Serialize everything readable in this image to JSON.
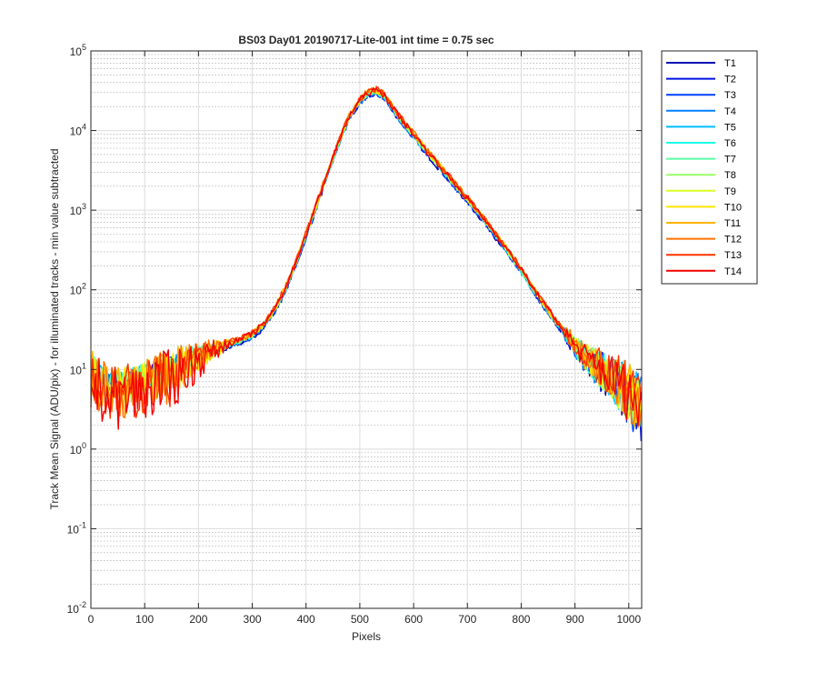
{
  "chart_data": {
    "type": "line",
    "title": "BS03 Day01 20190717-Lite-001 int time = 0.75 sec",
    "xlabel": "Pixels",
    "ylabel": "Track Mean Signal (ADU/pix) - for illuminated tracks - min value subtracted",
    "xlim": [
      0,
      1024
    ],
    "ylim": [
      0.01,
      100000
    ],
    "yscale": "log",
    "grid": true,
    "minor_grid": true,
    "legend_position": "outside-top-right",
    "x_ticks": [
      "0",
      "100",
      "200",
      "300",
      "400",
      "500",
      "600",
      "700",
      "800",
      "900",
      "1000"
    ],
    "y_ticks": [
      {
        "base": "10",
        "exp": "-2"
      },
      {
        "base": "10",
        "exp": "-1"
      },
      {
        "base": "10",
        "exp": "0"
      },
      {
        "base": "10",
        "exp": "1"
      },
      {
        "base": "10",
        "exp": "2"
      },
      {
        "base": "10",
        "exp": "3"
      },
      {
        "base": "10",
        "exp": "4"
      },
      {
        "base": "10",
        "exp": "5"
      }
    ],
    "profile": {
      "x": [
        0,
        10,
        20,
        30,
        40,
        50,
        60,
        80,
        100,
        130,
        160,
        200,
        240,
        280,
        300,
        320,
        340,
        360,
        380,
        400,
        420,
        440,
        460,
        480,
        500,
        515,
        530,
        545,
        560,
        580,
        600,
        620,
        640,
        660,
        680,
        700,
        720,
        740,
        760,
        780,
        800,
        820,
        840,
        860,
        880,
        900,
        920,
        940,
        960,
        980,
        1000,
        1010,
        1024
      ],
      "y": [
        13,
        11,
        9.5,
        8.5,
        8,
        8,
        8.2,
        9,
        10,
        12,
        14,
        17,
        20,
        24,
        28,
        36,
        55,
        100,
        210,
        500,
        1200,
        3000,
        7000,
        15000,
        24000,
        30000,
        32000,
        28000,
        20000,
        13000,
        9000,
        6000,
        4200,
        2900,
        2000,
        1400,
        950,
        650,
        430,
        280,
        180,
        110,
        70,
        45,
        30,
        20,
        14,
        11,
        9,
        7,
        5,
        4,
        3.5
      ]
    },
    "series": [
      {
        "name": "T1",
        "color": "#0000b3",
        "scale": 0.92
      },
      {
        "name": "T2",
        "color": "#0013e6",
        "scale": 0.93
      },
      {
        "name": "T3",
        "color": "#0040ff",
        "scale": 0.94
      },
      {
        "name": "T4",
        "color": "#0080ff",
        "scale": 0.95
      },
      {
        "name": "T5",
        "color": "#00bfff",
        "scale": 0.96
      },
      {
        "name": "T6",
        "color": "#1affe6",
        "scale": 0.97
      },
      {
        "name": "T7",
        "color": "#59ffa6",
        "scale": 0.98
      },
      {
        "name": "T8",
        "color": "#99ff66",
        "scale": 0.99
      },
      {
        "name": "T9",
        "color": "#d9ff26",
        "scale": 1.0
      },
      {
        "name": "T10",
        "color": "#ffe600",
        "scale": 1.01
      },
      {
        "name": "T11",
        "color": "#ffb300",
        "scale": 1.02
      },
      {
        "name": "T12",
        "color": "#ff7300",
        "scale": 1.03
      },
      {
        "name": "T13",
        "color": "#ff3300",
        "scale": 1.03
      },
      {
        "name": "T14",
        "color": "#f20000",
        "scale": 1.0
      }
    ]
  }
}
